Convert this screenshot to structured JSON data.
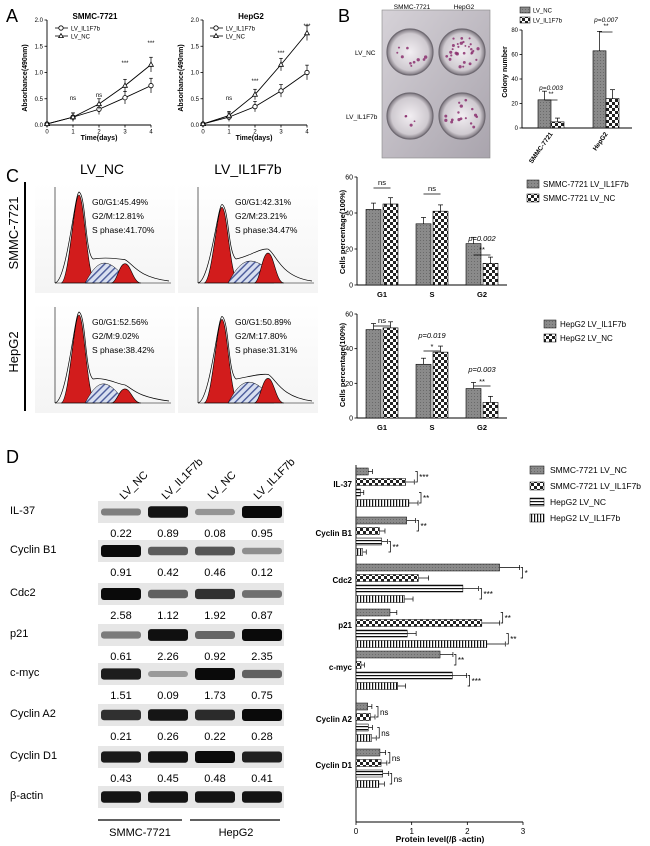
{
  "panel_labels": {
    "A": "A",
    "B": "B",
    "C": "C",
    "D": "D"
  },
  "panel_a": {
    "charts": [
      {
        "title": "SMMC-7721",
        "legend": [
          "LV_IL1F7b",
          "LV_NC"
        ],
        "ylabel": "Absorbance(490nm)",
        "xlabel": "Time(days)",
        "x_ticks": [
          "0",
          "1",
          "2",
          "3",
          "4"
        ],
        "y_ticks": [
          "0.0",
          "0.5",
          "1.0",
          "1.5",
          "2.0"
        ],
        "significance": [
          "ns",
          "ns",
          "***",
          "***"
        ]
      },
      {
        "title": "HepG2",
        "legend": [
          "LV_IL1F7b",
          "LV_NC"
        ],
        "ylabel": "Absorbance(490nm)",
        "xlabel": "Time(days)",
        "x_ticks": [
          "0",
          "1",
          "2",
          "3",
          "4"
        ],
        "y_ticks": [
          "0.0",
          "0.5",
          "1.0",
          "1.5",
          "2.0"
        ],
        "significance": [
          "ns",
          "***",
          "***",
          "***"
        ]
      }
    ]
  },
  "panel_b": {
    "photo_col_labels": [
      "SMMC-7721",
      "HepG2"
    ],
    "photo_row_labels": [
      "LV_NC",
      "LV_IL1F7b"
    ],
    "legend": [
      "LV_NC",
      "LV_IL1F7b"
    ],
    "ylabel": "Colony number",
    "y_ticks": [
      "0",
      "20",
      "40",
      "60",
      "80"
    ],
    "categories": [
      "SMMC-7721",
      "HepG2"
    ],
    "pvalues": [
      "p=0.003",
      "p=0.007"
    ],
    "stars": [
      "**",
      "**"
    ]
  },
  "panel_c": {
    "col_headers": [
      "LV_NC",
      "LV_IL1F7b"
    ],
    "row_headers": [
      "SMMC-7721",
      "HepG2"
    ],
    "flow_stats": [
      [
        "G0/G1:45.49%",
        "G2/M:12.81%",
        "S phase:41.70%"
      ],
      [
        "G0/G1:42.31%",
        "G2/M:23.21%",
        "S phase:34.47%"
      ],
      [
        "G0/G1:52.56%",
        "G2/M:9.02%",
        "S phase:38.42%"
      ],
      [
        "G0/G1:50.89%",
        "G2/M:17.80%",
        "S phase:31.31%"
      ]
    ],
    "bar_ylabel": "Cells percentage(100%)",
    "bar_categories": [
      "G1",
      "S",
      "G2"
    ],
    "y_ticks": [
      "0",
      "20",
      "40",
      "60"
    ],
    "legend_top": [
      "SMMC-7721 LV_IL1F7b",
      "SMMC-7721 LV_NC"
    ],
    "legend_bottom": [
      "HepG2 LV_IL1F7b",
      "HepG2 LV_NC"
    ],
    "annot_top": [
      "ns",
      "ns",
      "p=0.002",
      "**"
    ],
    "annot_bottom": [
      "ns",
      "p=0.019",
      "*",
      "p=0.003",
      "**"
    ]
  },
  "panel_d": {
    "lane_labels": [
      "LV_NC",
      "LV_IL1F7b",
      "LV_NC",
      "LV_IL1F7b"
    ],
    "proteins": [
      "IL-37",
      "Cyclin B1",
      "Cdc2",
      "p21",
      "c-myc",
      "Cyclin A2",
      "Cyclin D1",
      "β-actin"
    ],
    "quant": [
      [
        "0.22",
        "0.89",
        "0.08",
        "0.95"
      ],
      [
        "0.91",
        "0.42",
        "0.46",
        "0.12"
      ],
      [
        "2.58",
        "1.12",
        "1.92",
        "0.87"
      ],
      [
        "0.61",
        "2.26",
        "0.92",
        "2.35"
      ],
      [
        "1.51",
        "0.09",
        "1.73",
        "0.75"
      ],
      [
        "0.21",
        "0.26",
        "0.22",
        "0.28"
      ],
      [
        "0.43",
        "0.45",
        "0.48",
        "0.41"
      ]
    ],
    "cell_lines": [
      "SMMC-7721",
      "HepG2"
    ],
    "chart_legend": [
      "SMMC-7721 LV_NC",
      "SMMC-7721 LV_IL1F7b",
      "HepG2 LV_NC",
      "HepG2 LV_IL1F7b"
    ],
    "chart_xlabel": "Protein level(/β -actin)",
    "chart_x_ticks": [
      "0",
      "1",
      "2",
      "3"
    ],
    "chart_categories": [
      "IL-37",
      "Cyclin B1",
      "Cdc2",
      "p21",
      "c-myc",
      "Cyclin A2",
      "Cyclin D1"
    ],
    "chart_sig": [
      [
        "***",
        "**"
      ],
      [
        "**",
        "**"
      ],
      [
        "*",
        "***"
      ],
      [
        "**",
        "**"
      ],
      [
        "**",
        "***"
      ],
      [
        "ns",
        "ns"
      ],
      [
        "ns",
        "ns"
      ]
    ]
  },
  "chart_data": [
    {
      "type": "line",
      "title": "SMMC-7721",
      "xlabel": "Time(days)",
      "ylabel": "Absorbance(490nm)",
      "x": [
        0,
        1,
        2,
        3,
        4
      ],
      "ylim": [
        0,
        2.0
      ],
      "series": [
        {
          "name": "LV_IL1F7b",
          "values": [
            0.02,
            0.15,
            0.3,
            0.52,
            0.75
          ]
        },
        {
          "name": "LV_NC",
          "values": [
            0.02,
            0.15,
            0.4,
            0.75,
            1.15
          ]
        }
      ]
    },
    {
      "type": "line",
      "title": "HepG2",
      "xlabel": "Time(days)",
      "ylabel": "Absorbance(490nm)",
      "x": [
        0,
        1,
        2,
        3,
        4
      ],
      "ylim": [
        0,
        2.0
      ],
      "series": [
        {
          "name": "LV_IL1F7b",
          "values": [
            0.02,
            0.15,
            0.35,
            0.65,
            1.0
          ]
        },
        {
          "name": "LV_NC",
          "values": [
            0.02,
            0.18,
            0.58,
            1.15,
            1.75
          ]
        }
      ]
    },
    {
      "type": "bar",
      "title": "",
      "ylabel": "Colony number",
      "categories": [
        "SMMC-7721",
        "HepG2"
      ],
      "ylim": [
        0,
        80
      ],
      "series": [
        {
          "name": "LV_NC",
          "values": [
            23,
            63
          ]
        },
        {
          "name": "LV_IL1F7b",
          "values": [
            5,
            24
          ]
        }
      ]
    },
    {
      "type": "bar",
      "title": "",
      "ylabel": "Cells percentage(100%)",
      "categories": [
        "G1",
        "S",
        "G2"
      ],
      "ylim": [
        0,
        60
      ],
      "series": [
        {
          "name": "SMMC-7721 LV_IL1F7b",
          "values": [
            42,
            34,
            23
          ]
        },
        {
          "name": "SMMC-7721 LV_NC",
          "values": [
            45,
            41,
            12
          ]
        }
      ]
    },
    {
      "type": "bar",
      "title": "",
      "ylabel": "Cells percentage(100%)",
      "categories": [
        "G1",
        "S",
        "G2"
      ],
      "ylim": [
        0,
        60
      ],
      "series": [
        {
          "name": "HepG2 LV_IL1F7b",
          "values": [
            51,
            31,
            17
          ]
        },
        {
          "name": "HepG2 LV_NC",
          "values": [
            52,
            38,
            9
          ]
        }
      ]
    },
    {
      "type": "bar",
      "title": "",
      "xlabel": "Protein level(/β -actin)",
      "categories": [
        "IL-37",
        "Cyclin B1",
        "Cdc2",
        "p21",
        "c-myc",
        "Cyclin A2",
        "Cyclin D1"
      ],
      "xlim": [
        0,
        3
      ],
      "series": [
        {
          "name": "SMMC-7721 LV_NC",
          "values": [
            0.22,
            0.91,
            2.58,
            0.61,
            1.51,
            0.21,
            0.43
          ]
        },
        {
          "name": "SMMC-7721 LV_IL1F7b",
          "values": [
            0.89,
            0.42,
            1.12,
            2.26,
            0.09,
            0.26,
            0.45
          ]
        },
        {
          "name": "HepG2 LV_NC",
          "values": [
            0.08,
            0.46,
            1.92,
            0.92,
            1.73,
            0.22,
            0.48
          ]
        },
        {
          "name": "HepG2 LV_IL1F7b",
          "values": [
            0.95,
            0.12,
            0.87,
            2.35,
            0.75,
            0.28,
            0.41
          ]
        }
      ]
    }
  ]
}
